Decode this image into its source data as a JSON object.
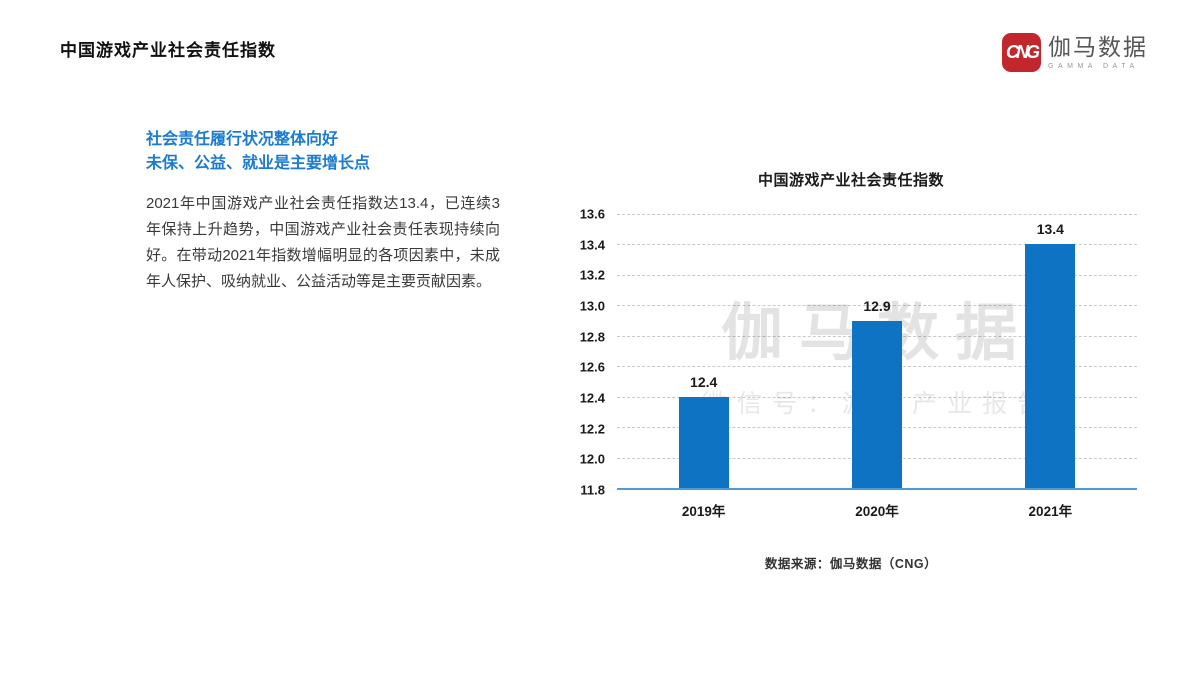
{
  "page": {
    "title": "中国游戏产业社会责任指数"
  },
  "logo": {
    "badge": "CNG",
    "name": "伽马数据",
    "subtitle": "GAMMA DATA"
  },
  "left_column": {
    "heading_line1": "社会责任履行状况整体向好",
    "heading_line2": "未保、公益、就业是主要增长点",
    "paragraph": "2021年中国游戏产业社会责任指数达13.4，已连续3年保持上升趋势，中国游戏产业社会责任表现持续向好。在带动2021年指数增幅明显的各项因素中，未成年人保护、吸纳就业、公益活动等是主要贡献因素。"
  },
  "chart_data": {
    "type": "bar",
    "title": "中国游戏产业社会责任指数",
    "categories": [
      "2019年",
      "2020年",
      "2021年"
    ],
    "values": [
      12.4,
      12.9,
      13.4
    ],
    "ylim": [
      11.8,
      13.6
    ],
    "yticks": [
      11.8,
      12.0,
      12.2,
      12.4,
      12.6,
      12.8,
      13.0,
      13.2,
      13.4,
      13.6
    ],
    "grid": "horizontal-dashed",
    "legend": "none",
    "bar_color": "#0d73c2",
    "axis_color": "#4f9bd5",
    "watermark_line1": "伽马数据",
    "watermark_line2": "微信号：游戏产业报告"
  },
  "footer": {
    "source": "数据来源：伽马数据（CNG）"
  },
  "colors": {
    "accent_blue": "#1b7bd1",
    "bar_blue": "#0d73c2",
    "axis_blue": "#4f9bd5",
    "logo_red": "#c1272d"
  }
}
